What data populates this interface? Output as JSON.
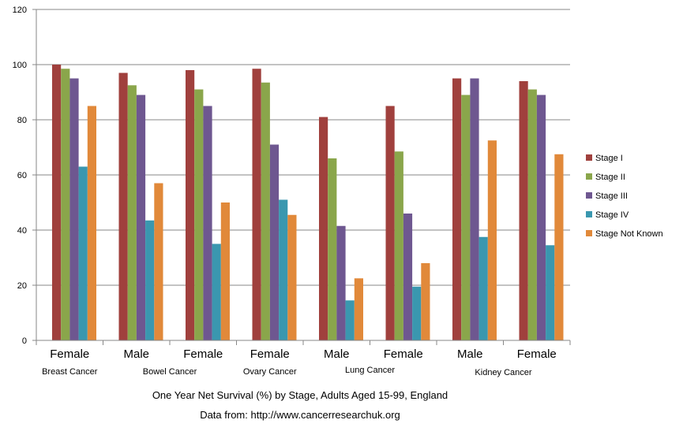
{
  "chart_data": {
    "type": "bar",
    "title": "",
    "xlabel": "",
    "ylabel": "",
    "ylim": [
      0,
      120
    ],
    "yticks": [
      0,
      20,
      40,
      60,
      80,
      100,
      120
    ],
    "grid": true,
    "legend_position": "right",
    "categories": [
      "Female",
      "Male",
      "Female",
      "Female",
      "Male",
      "Female",
      "Male",
      "Female"
    ],
    "groups": [
      "Breast Cancer",
      "Bowel Cancer",
      "Ovary Cancer",
      "Lung Cancer",
      "Kidney Cancer"
    ],
    "series": [
      {
        "name": "Stage I",
        "color": "#A0403D",
        "values": [
          100,
          97,
          98,
          98.5,
          81,
          85,
          95,
          94
        ]
      },
      {
        "name": "Stage II",
        "color": "#8AA64B",
        "values": [
          98.5,
          92.5,
          91,
          93.5,
          66,
          68.5,
          89,
          91
        ]
      },
      {
        "name": "Stage III",
        "color": "#6E5790",
        "values": [
          95,
          89,
          85,
          71,
          41.5,
          46,
          95,
          89
        ]
      },
      {
        "name": "Stage IV",
        "color": "#3A97AF",
        "values": [
          63,
          43.5,
          35,
          51,
          14.5,
          19.5,
          37.5,
          34.5
        ]
      },
      {
        "name": "Stage Not Known",
        "color": "#E1893A",
        "values": [
          85,
          57,
          50,
          45.5,
          22.5,
          28,
          72.5,
          67.5
        ]
      }
    ]
  },
  "captions": {
    "line1": "One Year Net Survival (%) by Stage, Adults Aged 15-99, England",
    "line2": "Data from: http://www.cancerresearchuk.org"
  }
}
